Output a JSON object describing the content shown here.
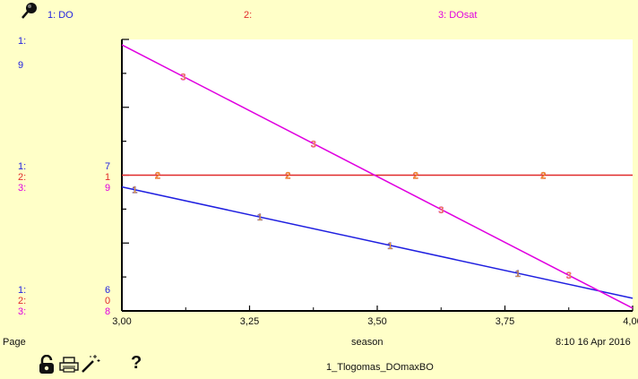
{
  "legend": {
    "series1": "1: DO",
    "series2": "2:",
    "series3": "3: DOsat"
  },
  "left_scale": {
    "top": [
      {
        "label": "1:",
        "value": "9"
      }
    ],
    "middle": [
      {
        "label": "1:",
        "value": "7"
      },
      {
        "label": "2:",
        "value": "1"
      },
      {
        "label": "3:",
        "value": "9"
      }
    ],
    "bottom": [
      {
        "label": "1:",
        "value": "6"
      },
      {
        "label": "2:",
        "value": "0"
      },
      {
        "label": "3:",
        "value": "8"
      }
    ]
  },
  "footer": {
    "page_label": "Page",
    "x_axis_label": "season",
    "timestamp": "8:10 16 Apr 2016",
    "model_name": "1_Tlogomas_DOmaxBO",
    "help_symbol": "?"
  },
  "icons": [
    "pin-icon",
    "lock-icon",
    "print-icon",
    "magic-wand-icon",
    "help-icon"
  ],
  "colors": {
    "background": "#FFFFC8",
    "series1": "#1F1FE0",
    "series2": "#E02A2A",
    "series3": "#E000E0",
    "marker": "#F0A030"
  },
  "chart_data": {
    "type": "line",
    "x_ticks": [
      "3,00",
      "3,25",
      "3,50",
      "3,75",
      "4,00"
    ],
    "xlim": [
      3.0,
      4.0
    ],
    "xlabel": "season",
    "series": [
      {
        "name": "DO",
        "marker": "1",
        "color": "#1F1FE0",
        "ylim": [
          6,
          9
        ],
        "x": [
          3.0,
          4.0
        ],
        "y": [
          7.37,
          6.14
        ]
      },
      {
        "name": "",
        "marker": "2",
        "color": "#E02A2A",
        "ylim": [
          0,
          2
        ],
        "x": [
          3.0,
          4.0
        ],
        "y": [
          1.0,
          1.0
        ]
      },
      {
        "name": "DOsat",
        "marker": "3",
        "color": "#E000E0",
        "ylim": [
          8,
          10
        ],
        "x": [
          3.0,
          4.0
        ],
        "y": [
          9.96,
          8.02
        ]
      }
    ],
    "marker_positions": [
      {
        "series": 0,
        "x": [
          3.025,
          3.27,
          3.525,
          3.775
        ]
      },
      {
        "series": 1,
        "x": [
          3.07,
          3.325,
          3.575,
          3.825
        ]
      },
      {
        "series": 2,
        "x": [
          3.12,
          3.375,
          3.625,
          3.875
        ]
      }
    ]
  }
}
